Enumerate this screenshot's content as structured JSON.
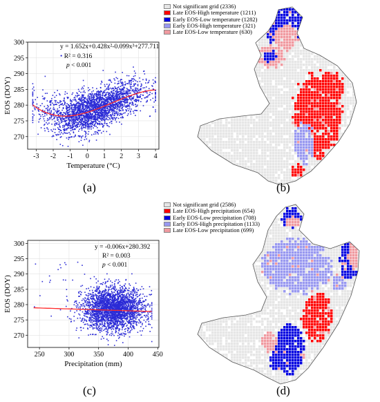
{
  "panels": {
    "a": "(a)",
    "b": "(b)",
    "c": "(c)",
    "d": "(d)"
  },
  "chart_data": [
    {
      "type": "scatter",
      "panel": "a",
      "xlabel": "Temperature (°C)",
      "ylabel": "EOS (DOY)",
      "xlim": [
        -3.5,
        4.2
      ],
      "ylim": [
        266,
        300
      ],
      "xticks": [
        -3,
        -2,
        -1,
        0,
        1,
        2,
        3,
        4
      ],
      "yticks": [
        270,
        275,
        280,
        285,
        290,
        295,
        300
      ],
      "grid": true,
      "point_color": "#2b2bd6",
      "fit_color": "#ff2a2a",
      "equation": "y = 1.652x+0.428x²-0.099x³+277.711",
      "r2": "R² = 0.316",
      "p_italic": "p",
      "p_rest": " < 0.001",
      "legend_position": "top-left",
      "fit": {
        "c0": 277.711,
        "c1": 1.652,
        "c2": 0.428,
        "c3": -0.099
      },
      "points_summary": {
        "n_approx": 3000,
        "x_range": [
          -3.2,
          4.0
        ],
        "center": 277.7,
        "spread": 3.2
      }
    },
    {
      "type": "scatter",
      "panel": "c",
      "xlabel": "Precipitation (mm)",
      "ylabel": "EOS (DOY)",
      "xlim": [
        230,
        452
      ],
      "ylim": [
        266,
        301
      ],
      "xticks": [
        250,
        300,
        350,
        400,
        450
      ],
      "yticks": [
        270,
        275,
        280,
        285,
        290,
        295,
        300
      ],
      "grid": true,
      "point_color": "#2b2bd6",
      "fit_color": "#ff2a2a",
      "equation": "y = -0.006x+280.392",
      "r2": "R² = 0.003",
      "p_italic": "p",
      "p_rest": " < 0.001",
      "legend_position": "top-right",
      "fit": {
        "slope": -0.006,
        "intercept": 280.392
      },
      "points_summary": {
        "n_approx": 3000,
        "x_range": [
          240,
          440
        ],
        "center": 278.5,
        "spread": 3.5
      }
    }
  ],
  "map_b": {
    "legend": [
      {
        "label": "Not significant grid (2336)",
        "color": "#e6e6e6"
      },
      {
        "label": "Late EOS-High temperature (1211)",
        "color": "#ff0000"
      },
      {
        "label": "Early EOS-Low temperature (1282)",
        "color": "#0000e0"
      },
      {
        "label": "Early EOS-High temperature (321)",
        "color": "#9898f0"
      },
      {
        "label": "Late EOS-Low temperature (630)",
        "color": "#f09aa0"
      }
    ]
  },
  "map_d": {
    "legend": [
      {
        "label": "Not significant grid (2586)",
        "color": "#e6e6e6"
      },
      {
        "label": "Late EOS-High precipitation (654)",
        "color": "#ff0000"
      },
      {
        "label": "Early EOS-Low precipitation (708)",
        "color": "#0000e0"
      },
      {
        "label": "Early EOS-High precipitation (1133)",
        "color": "#9898f0"
      },
      {
        "label": "Late EOS-Low precipitation (699)",
        "color": "#f09aa0"
      }
    ]
  }
}
